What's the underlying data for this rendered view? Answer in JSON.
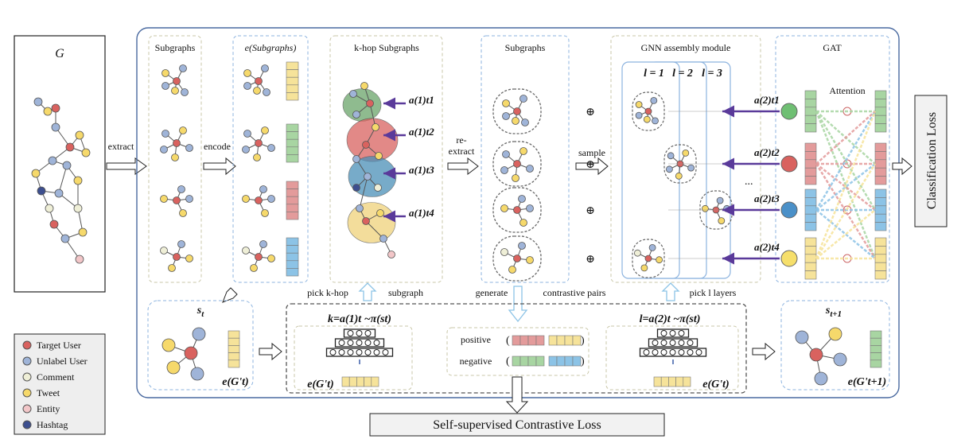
{
  "input_graph_label": "G",
  "arrows": {
    "extract": "extract",
    "encode": "encode",
    "re_extract_1": "re-",
    "re_extract_2": "extract",
    "sample": "sample"
  },
  "panels": {
    "subgraphs": "Subgraphs",
    "e_subgraphs": "e(Subgraphs)",
    "khop": "k-hop Subgraphs",
    "subgraphs2": "Subgraphs",
    "gnn": "GNN assembly module",
    "gat": "GAT"
  },
  "layers": {
    "l1": "l = 1",
    "l2": "l = 2",
    "l3": "l = 3"
  },
  "attention_label": "Attention",
  "actions": {
    "a_t1": "a(1)t1",
    "a_t2": "a(1)t2",
    "a_t3": "a(1)t3",
    "a_t4": "a(1)t4",
    "a2_t1": "a(2)t1",
    "a2_t2": "a(2)t2",
    "a2_t3": "a(2)t3",
    "a2_t4": "a(2)t4"
  },
  "bottom": {
    "pick_k": "pick k-hop",
    "subgraph": "subgraph",
    "generate": "generate",
    "contrastive_pairs": "contrastive pairs",
    "pick_l": "pick l layers",
    "s_t": "s_t",
    "s_t1": "s_t+1",
    "e_gt": "e(G't)",
    "e_gt1": "e(G't+1)",
    "k_formula": "k=a(1)t ~π(st)",
    "l_formula": "l=a(2)t ~π(st)",
    "positive": "positive",
    "negative": "negative",
    "self_supervised": "Self-supervised Contrastive Loss",
    "classification": "Classification Loss",
    "dots": "..."
  },
  "legend": [
    {
      "label": "Target User",
      "color": "#d9625f"
    },
    {
      "label": "Unlabel User",
      "color": "#9fb4d8"
    },
    {
      "label": "Comment",
      "color": "#efefd7"
    },
    {
      "label": "Tweet",
      "color": "#f6d96b"
    },
    {
      "label": "Entity",
      "color": "#f2c6c8"
    },
    {
      "label": "Hashtag",
      "color": "#3d4f8f"
    }
  ],
  "colors": {
    "target": "#d9625f",
    "unlabel": "#9fb4d8",
    "comment": "#efefd7",
    "tweet": "#f6d96b",
    "entity": "#f2c6c8",
    "hashtag": "#3d4f8f",
    "frame": "#4a6aa0",
    "green": "#a8d5a2",
    "blue": "#8cc3e6",
    "red": "#e39b9b",
    "yellow": "#f6e39a",
    "purple": "#5a3a9a"
  }
}
